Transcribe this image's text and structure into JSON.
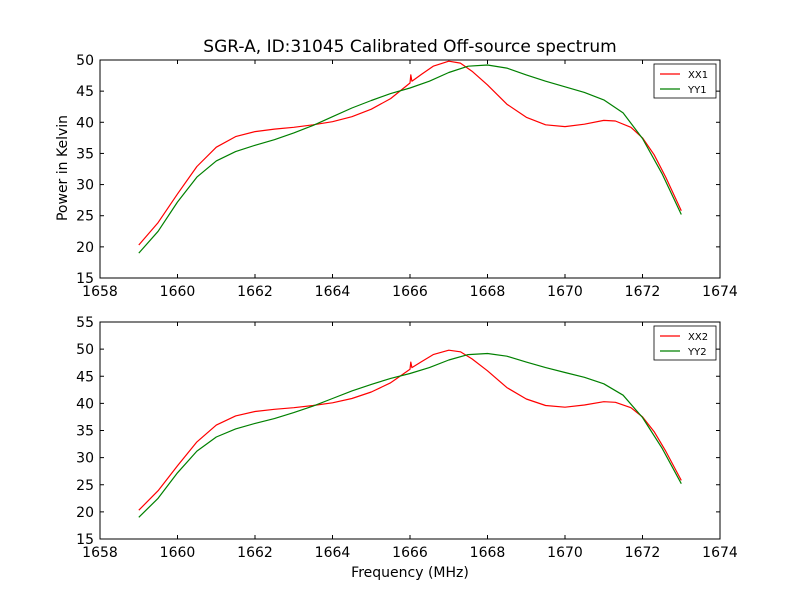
{
  "chart_data": [
    {
      "type": "line",
      "title": "SGR-A, ID:31045 Calibrated Off-source spectrum",
      "xlabel": "",
      "ylabel": "Power in Kelvin",
      "xlim": [
        1658,
        1674
      ],
      "ylim": [
        15,
        50
      ],
      "xticks": [
        1658,
        1660,
        1662,
        1664,
        1666,
        1668,
        1670,
        1672,
        1674
      ],
      "yticks": [
        15,
        20,
        25,
        30,
        35,
        40,
        45,
        50
      ],
      "legend_position": "top-right",
      "grid": false,
      "series": [
        {
          "name": "XX1",
          "color": "#ff0000",
          "points": [
            [
              1659.0,
              20.3
            ],
            [
              1659.5,
              23.9
            ],
            [
              1660.0,
              28.5
            ],
            [
              1660.5,
              32.9
            ],
            [
              1661.0,
              36.0
            ],
            [
              1661.5,
              37.7
            ],
            [
              1662.0,
              38.5
            ],
            [
              1662.5,
              38.9
            ],
            [
              1663.0,
              39.2
            ],
            [
              1663.5,
              39.6
            ],
            [
              1664.0,
              40.1
            ],
            [
              1664.5,
              40.9
            ],
            [
              1665.0,
              42.1
            ],
            [
              1665.5,
              43.8
            ],
            [
              1666.0,
              46.3
            ],
            [
              1666.02,
              47.6
            ],
            [
              1666.05,
              46.6
            ],
            [
              1666.3,
              47.7
            ],
            [
              1666.6,
              49.0
            ],
            [
              1667.0,
              49.8
            ],
            [
              1667.3,
              49.5
            ],
            [
              1667.6,
              48.2
            ],
            [
              1668.0,
              46.0
            ],
            [
              1668.5,
              42.9
            ],
            [
              1669.0,
              40.8
            ],
            [
              1669.5,
              39.6
            ],
            [
              1670.0,
              39.3
            ],
            [
              1670.5,
              39.7
            ],
            [
              1671.0,
              40.3
            ],
            [
              1671.3,
              40.2
            ],
            [
              1671.7,
              39.2
            ],
            [
              1672.0,
              37.5
            ],
            [
              1672.3,
              34.8
            ],
            [
              1672.6,
              31.2
            ],
            [
              1673.0,
              25.8
            ]
          ]
        },
        {
          "name": "YY1",
          "color": "#008000",
          "points": [
            [
              1659.0,
              19.0
            ],
            [
              1659.5,
              22.5
            ],
            [
              1660.0,
              27.2
            ],
            [
              1660.5,
              31.2
            ],
            [
              1661.0,
              33.8
            ],
            [
              1661.5,
              35.3
            ],
            [
              1662.0,
              36.3
            ],
            [
              1662.5,
              37.2
            ],
            [
              1663.0,
              38.3
            ],
            [
              1663.5,
              39.5
            ],
            [
              1664.0,
              40.9
            ],
            [
              1664.5,
              42.3
            ],
            [
              1665.0,
              43.5
            ],
            [
              1665.5,
              44.6
            ],
            [
              1666.0,
              45.5
            ],
            [
              1666.5,
              46.6
            ],
            [
              1667.0,
              48.0
            ],
            [
              1667.5,
              49.0
            ],
            [
              1668.0,
              49.2
            ],
            [
              1668.5,
              48.7
            ],
            [
              1669.0,
              47.6
            ],
            [
              1669.5,
              46.6
            ],
            [
              1670.0,
              45.7
            ],
            [
              1670.5,
              44.8
            ],
            [
              1671.0,
              43.6
            ],
            [
              1671.5,
              41.5
            ],
            [
              1672.0,
              37.4
            ],
            [
              1672.5,
              31.8
            ],
            [
              1673.0,
              25.2
            ]
          ]
        }
      ]
    },
    {
      "type": "line",
      "title": "",
      "xlabel": "Frequency (MHz)",
      "ylabel": "",
      "xlim": [
        1658,
        1674
      ],
      "ylim": [
        15,
        55
      ],
      "xticks": [
        1658,
        1660,
        1662,
        1664,
        1666,
        1668,
        1670,
        1672,
        1674
      ],
      "yticks": [
        15,
        20,
        25,
        30,
        35,
        40,
        45,
        50,
        55
      ],
      "legend_position": "top-right",
      "grid": false,
      "series": [
        {
          "name": "XX2",
          "color": "#ff0000",
          "points": [
            [
              1659.0,
              20.3
            ],
            [
              1659.5,
              23.9
            ],
            [
              1660.0,
              28.5
            ],
            [
              1660.5,
              32.9
            ],
            [
              1661.0,
              36.0
            ],
            [
              1661.5,
              37.7
            ],
            [
              1662.0,
              38.5
            ],
            [
              1662.5,
              38.9
            ],
            [
              1663.0,
              39.2
            ],
            [
              1663.5,
              39.6
            ],
            [
              1664.0,
              40.1
            ],
            [
              1664.5,
              40.9
            ],
            [
              1665.0,
              42.1
            ],
            [
              1665.5,
              43.8
            ],
            [
              1666.0,
              46.3
            ],
            [
              1666.02,
              47.6
            ],
            [
              1666.05,
              46.6
            ],
            [
              1666.3,
              47.7
            ],
            [
              1666.6,
              49.0
            ],
            [
              1667.0,
              49.8
            ],
            [
              1667.3,
              49.5
            ],
            [
              1667.6,
              48.2
            ],
            [
              1668.0,
              46.0
            ],
            [
              1668.5,
              42.9
            ],
            [
              1669.0,
              40.8
            ],
            [
              1669.5,
              39.6
            ],
            [
              1670.0,
              39.3
            ],
            [
              1670.5,
              39.7
            ],
            [
              1671.0,
              40.3
            ],
            [
              1671.3,
              40.2
            ],
            [
              1671.7,
              39.2
            ],
            [
              1672.0,
              37.5
            ],
            [
              1672.3,
              34.8
            ],
            [
              1672.6,
              31.2
            ],
            [
              1673.0,
              25.8
            ]
          ]
        },
        {
          "name": "YY2",
          "color": "#008000",
          "points": [
            [
              1659.0,
              19.0
            ],
            [
              1659.5,
              22.5
            ],
            [
              1660.0,
              27.2
            ],
            [
              1660.5,
              31.2
            ],
            [
              1661.0,
              33.8
            ],
            [
              1661.5,
              35.3
            ],
            [
              1662.0,
              36.3
            ],
            [
              1662.5,
              37.2
            ],
            [
              1663.0,
              38.3
            ],
            [
              1663.5,
              39.5
            ],
            [
              1664.0,
              40.9
            ],
            [
              1664.5,
              42.3
            ],
            [
              1665.0,
              43.5
            ],
            [
              1665.5,
              44.6
            ],
            [
              1666.0,
              45.5
            ],
            [
              1666.5,
              46.6
            ],
            [
              1667.0,
              48.0
            ],
            [
              1667.5,
              49.0
            ],
            [
              1668.0,
              49.2
            ],
            [
              1668.5,
              48.7
            ],
            [
              1669.0,
              47.6
            ],
            [
              1669.5,
              46.6
            ],
            [
              1670.0,
              45.7
            ],
            [
              1670.5,
              44.8
            ],
            [
              1671.0,
              43.6
            ],
            [
              1671.5,
              41.5
            ],
            [
              1672.0,
              37.4
            ],
            [
              1672.5,
              31.8
            ],
            [
              1673.0,
              25.2
            ]
          ]
        }
      ]
    }
  ]
}
